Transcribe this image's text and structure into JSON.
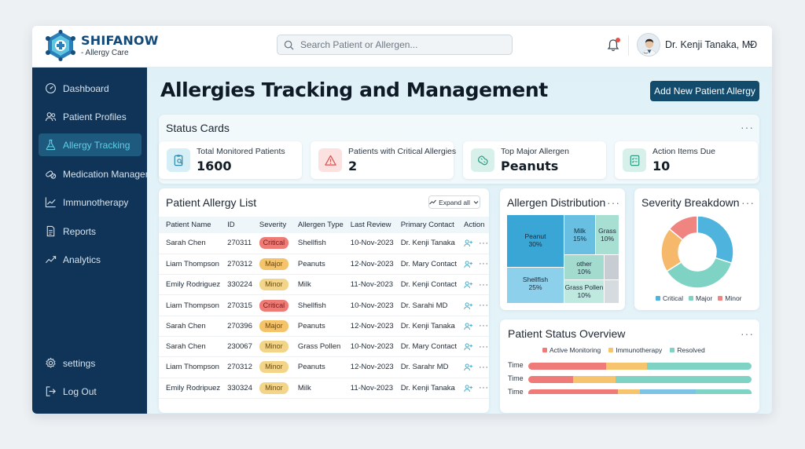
{
  "brand": {
    "name": "SHIFANOW",
    "sub": "- Allergy Care"
  },
  "search": {
    "placeholder": "Search Patient or Allergen..."
  },
  "user": {
    "name": "Dr. Kenji Tanaka, MD"
  },
  "sidebar": {
    "items": [
      {
        "label": "Dashboard",
        "icon": "gauge-icon"
      },
      {
        "label": "Patient Profiles",
        "icon": "users-icon"
      },
      {
        "label": "Allergy Tracking",
        "icon": "flask-icon",
        "active": true
      },
      {
        "label": "Medication Manager",
        "icon": "pills-icon"
      },
      {
        "label": "Immunotherapy",
        "icon": "line-chart-icon"
      },
      {
        "label": "Reports",
        "icon": "document-icon"
      },
      {
        "label": "Analytics",
        "icon": "trend-icon"
      }
    ],
    "bottom": [
      {
        "label": "settings",
        "icon": "gear-icon"
      },
      {
        "label": "Log Out",
        "icon": "logout-icon"
      }
    ]
  },
  "page": {
    "title": "Allergies Tracking and Management",
    "add_button": "Add New Patient Allergy"
  },
  "status_cards": {
    "title": "Status Cards",
    "items": [
      {
        "label": "Total Monitored Patients",
        "value": "1600",
        "icon": "clipboard-search-icon"
      },
      {
        "label": "Patients with Critical Allergies",
        "value": "2",
        "icon": "warning-icon"
      },
      {
        "label": "Top Major Allergen",
        "value": "Peanuts",
        "icon": "peanut-icon"
      },
      {
        "label": "Action Items Due",
        "value": "10",
        "icon": "checklist-icon"
      }
    ]
  },
  "patient_list": {
    "title": "Patient Allergy List",
    "expand_label": "Expand all",
    "columns": [
      "Patient Name",
      "ID",
      "Severity",
      "Allergen Type",
      "Last Review",
      "Primary Contact",
      "Action"
    ],
    "rows": [
      {
        "name": "Sarah Chen",
        "id": "270311",
        "severity": "Critical",
        "allergen": "Shellfish",
        "review": "10-Nov-2023",
        "contact": "Dr. Kenji Tanaka"
      },
      {
        "name": "Liam Thompson",
        "id": "270312",
        "severity": "Major",
        "allergen": "Peanuts",
        "review": "12-Nov-2023",
        "contact": "Dr. Mary Contact"
      },
      {
        "name": "Emily Rodriguez",
        "id": "330224",
        "severity": "Minor",
        "allergen": "Milk",
        "review": "11-Nov-2023",
        "contact": "Dr. Kenji Contact"
      },
      {
        "name": "Liam Thompson",
        "id": "270315",
        "severity": "Critical",
        "allergen": "Shellfish",
        "review": "10-Nov-2023",
        "contact": "Dr. Sarahi MD"
      },
      {
        "name": "Sarah Chen",
        "id": "270396",
        "severity": "Major",
        "allergen": "Peanuts",
        "review": "12-Nov-2023",
        "contact": "Dr. Kenji Tanaka"
      },
      {
        "name": "Sarah Chen",
        "id": "230067",
        "severity": "Minor",
        "allergen": "Grass Pollen",
        "review": "10-Nov-2023",
        "contact": "Dr. Mary Contact"
      },
      {
        "name": "Liam Thompson",
        "id": "270312",
        "severity": "Minor",
        "allergen": "Peanuts",
        "review": "12-Nov-2023",
        "contact": "Dr. Sarahr MD"
      },
      {
        "name": "Emily Rodripuez",
        "id": "330324",
        "severity": "Minor",
        "allergen": "Milk",
        "review": "11-Nov-2023",
        "contact": "Dr. Kenji Tanaka"
      }
    ]
  },
  "severity_colors": {
    "Critical": "#ee7b76",
    "Major": "#f5c46a",
    "Minor": "#f3d58a"
  },
  "allergen_distribution": {
    "title": "Allergen Distribution",
    "tiles": [
      {
        "name": "Peanut",
        "pct": "30%"
      },
      {
        "name": "Milk",
        "pct": "15%"
      },
      {
        "name": "Grass",
        "pct": "10%"
      },
      {
        "name": "Shellfish",
        "pct": "25%"
      },
      {
        "name": "other",
        "pct": "10%"
      },
      {
        "name": "Grass Pollen",
        "pct": "10%"
      }
    ]
  },
  "severity_breakdown": {
    "title": "Severity Breakdown",
    "legend": [
      "Critical",
      "Major",
      "Minor"
    ]
  },
  "patient_status": {
    "title": "Patient Status Overview",
    "legend": [
      "Active Monitoring",
      "Immunotherapy",
      "Resolved"
    ],
    "row_label": "Time"
  },
  "chart_data": [
    {
      "type": "treemap",
      "title": "Allergen Distribution",
      "categories": [
        "Peanut",
        "Milk",
        "Grass",
        "Shellfish",
        "other",
        "Grass Pollen"
      ],
      "values": [
        30,
        15,
        10,
        25,
        10,
        10
      ]
    },
    {
      "type": "pie",
      "title": "Severity Breakdown",
      "categories": [
        "Critical",
        "Major",
        "Minor"
      ],
      "series": [
        {
          "segments": [
            {
              "label": "Critical",
              "value": 30,
              "color": "#4fb4dd"
            },
            {
              "label": "Minor",
              "value": 36,
              "color": "#7fd3c4"
            },
            {
              "label": "Major",
              "value": 20,
              "color": "#f6b96b"
            },
            {
              "label": "Critical",
              "value": 14,
              "color": "#ef8480"
            }
          ]
        }
      ],
      "legend": "bottom"
    },
    {
      "type": "bar",
      "title": "Patient Status Overview",
      "categories": [
        "Time",
        "Time",
        "Time"
      ],
      "series": [
        {
          "name": "Active Monitoring",
          "values": [
            35,
            20,
            40
          ],
          "color": "#ef7b78"
        },
        {
          "name": "Immunotherapy",
          "values": [
            18,
            19,
            10
          ],
          "color": "#f6c46d"
        },
        {
          "name": "Resolved",
          "values": [
            47,
            61,
            25
          ],
          "color": "#7fd3c4"
        }
      ],
      "extra_segment_color": "#7ec3e6",
      "extra_segment_values": [
        0,
        0,
        25
      ],
      "legend": "top"
    }
  ]
}
